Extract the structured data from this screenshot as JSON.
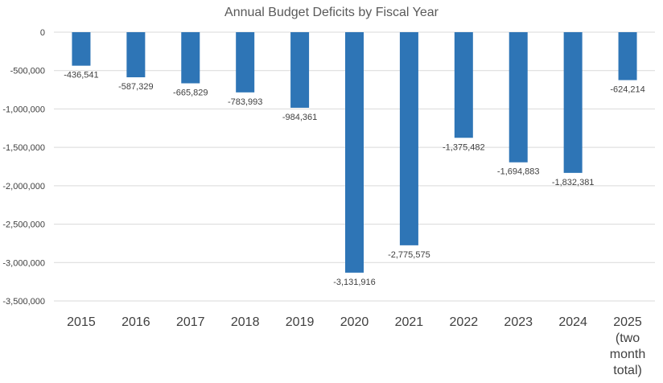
{
  "chart_data": {
    "type": "bar",
    "title": "Annual Budget Deficits by Fiscal Year",
    "categories": [
      "2015",
      "2016",
      "2017",
      "2018",
      "2019",
      "2020",
      "2021",
      "2022",
      "2023",
      "2024",
      "2025 (two month total)"
    ],
    "category_label_lines": [
      [
        "2015"
      ],
      [
        "2016"
      ],
      [
        "2017"
      ],
      [
        "2018"
      ],
      [
        "2019"
      ],
      [
        "2020"
      ],
      [
        "2021"
      ],
      [
        "2022"
      ],
      [
        "2023"
      ],
      [
        "2024"
      ],
      [
        "2025",
        "(two",
        "month",
        "total)"
      ]
    ],
    "values": [
      -436541,
      -587329,
      -665829,
      -783993,
      -984361,
      -3131916,
      -2775575,
      -1375482,
      -1694883,
      -1832381,
      -624214
    ],
    "data_labels": [
      "-436,541",
      "-587,329",
      "-665,829",
      "-783,993",
      "-984,361",
      "-3,131,916",
      "-2,775,575",
      "-1,375,482",
      "-1,694,883",
      "-1,832,381",
      "-624,214"
    ],
    "ylim": [
      -3500000,
      0
    ],
    "yticks": [
      0,
      -500000,
      -1000000,
      -1500000,
      -2000000,
      -2500000,
      -3000000,
      -3500000
    ],
    "ytick_labels": [
      "0",
      "-500,000",
      "-1,000,000",
      "-1,500,000",
      "-2,000,000",
      "-2,500,000",
      "-3,000,000",
      "-3,500,000"
    ],
    "grid": true,
    "legend": "none",
    "xlabel": "",
    "ylabel": "",
    "colors": {
      "bar": "#2E75B6"
    }
  }
}
